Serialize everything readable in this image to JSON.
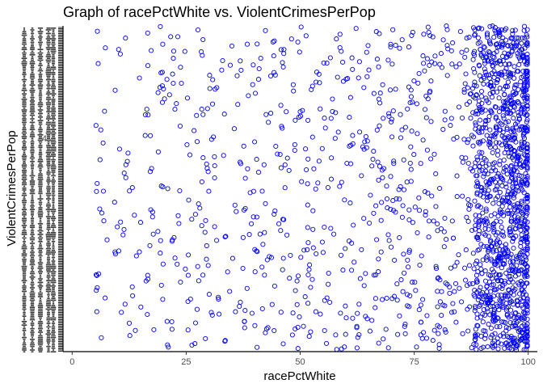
{
  "chart_data": {
    "type": "scatter",
    "title": "Graph of racePctWhite vs. ViolentCrimesPerPop",
    "xlabel": "racePctWhite",
    "ylabel": "ViolentCrimesPerPop",
    "xlim": [
      -2,
      102
    ],
    "x_ticks": [
      0,
      25,
      50,
      75,
      100
    ],
    "y_visible_tick": "4",
    "y_overplotted_tick_labels": true,
    "point_color": "#0000ff",
    "point_style": "hollow-circle",
    "grid": false,
    "legend": "none",
    "generator": {
      "n_points": 1990,
      "x_distribution": "left-skewed, concentrated between 75 and 100",
      "y_distribution": "uniform across plot height"
    }
  },
  "colors": {
    "axis": "#000000",
    "tick_text": "#4d4d4d",
    "points": "#0000ff"
  }
}
